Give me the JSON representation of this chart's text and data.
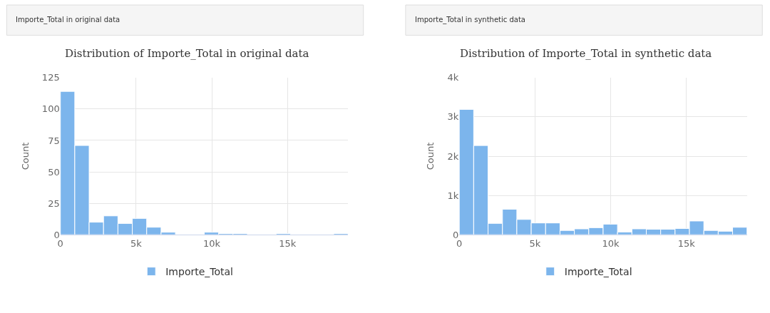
{
  "chart_data": [
    {
      "type": "histogram",
      "annotations": [
        "Importe_Total in original data"
      ],
      "title": "Distribution of Importe_Total in original data",
      "ylabel": "Count",
      "bins": [
        0,
        950,
        1900,
        2850,
        3800,
        4750,
        5700,
        6650,
        7600,
        8550,
        9500,
        10450,
        11400,
        12350,
        13300,
        14250,
        15200,
        16150,
        17100,
        18050,
        19000
      ],
      "series": [
        {
          "name": "Importe_Total",
          "color": "#7cb5ec",
          "values": [
            114,
            71,
            10,
            15,
            9,
            13,
            6,
            2,
            0,
            0,
            2,
            1,
            1,
            0,
            0,
            1,
            0,
            0,
            0,
            1
          ]
        }
      ],
      "xlim": [
        0,
        19000
      ],
      "xticks": [
        {
          "value": 0,
          "label": "0"
        },
        {
          "value": 5000,
          "label": "5k"
        },
        {
          "value": 10000,
          "label": "10k"
        },
        {
          "value": 15000,
          "label": "15k"
        }
      ],
      "ylim": [
        0,
        125
      ],
      "yticks": [
        0,
        25,
        50,
        75,
        100,
        125
      ],
      "grid": true,
      "legend": "bottom"
    },
    {
      "type": "histogram",
      "annotations": [
        "Importe_Total in synthetic data"
      ],
      "title": "Distribution of Importe_Total in synthetic data",
      "ylabel": "Count",
      "bins": [
        0,
        950,
        1900,
        2850,
        3800,
        4750,
        5700,
        6650,
        7600,
        8550,
        9500,
        10450,
        11400,
        12350,
        13300,
        14250,
        15200,
        16150,
        17100,
        18050,
        19000
      ],
      "series": [
        {
          "name": "Importe_Total",
          "color": "#7cb5ec",
          "values": [
            3190,
            2270,
            290,
            650,
            390,
            300,
            300,
            110,
            150,
            180,
            270,
            70,
            150,
            140,
            140,
            160,
            350,
            110,
            90,
            190
          ]
        }
      ],
      "xlim": [
        0,
        19000
      ],
      "xticks": [
        {
          "value": 0,
          "label": "0"
        },
        {
          "value": 5000,
          "label": "5k"
        },
        {
          "value": 10000,
          "label": "10k"
        },
        {
          "value": 15000,
          "label": "15k"
        }
      ],
      "ylim": [
        0,
        4000
      ],
      "yticks": [
        {
          "value": 0,
          "label": "0"
        },
        {
          "value": 1000,
          "label": "1k"
        },
        {
          "value": 2000,
          "label": "2k"
        },
        {
          "value": 3000,
          "label": "3k"
        },
        {
          "value": 4000,
          "label": "4k"
        }
      ],
      "grid": true,
      "legend": "bottom"
    }
  ]
}
